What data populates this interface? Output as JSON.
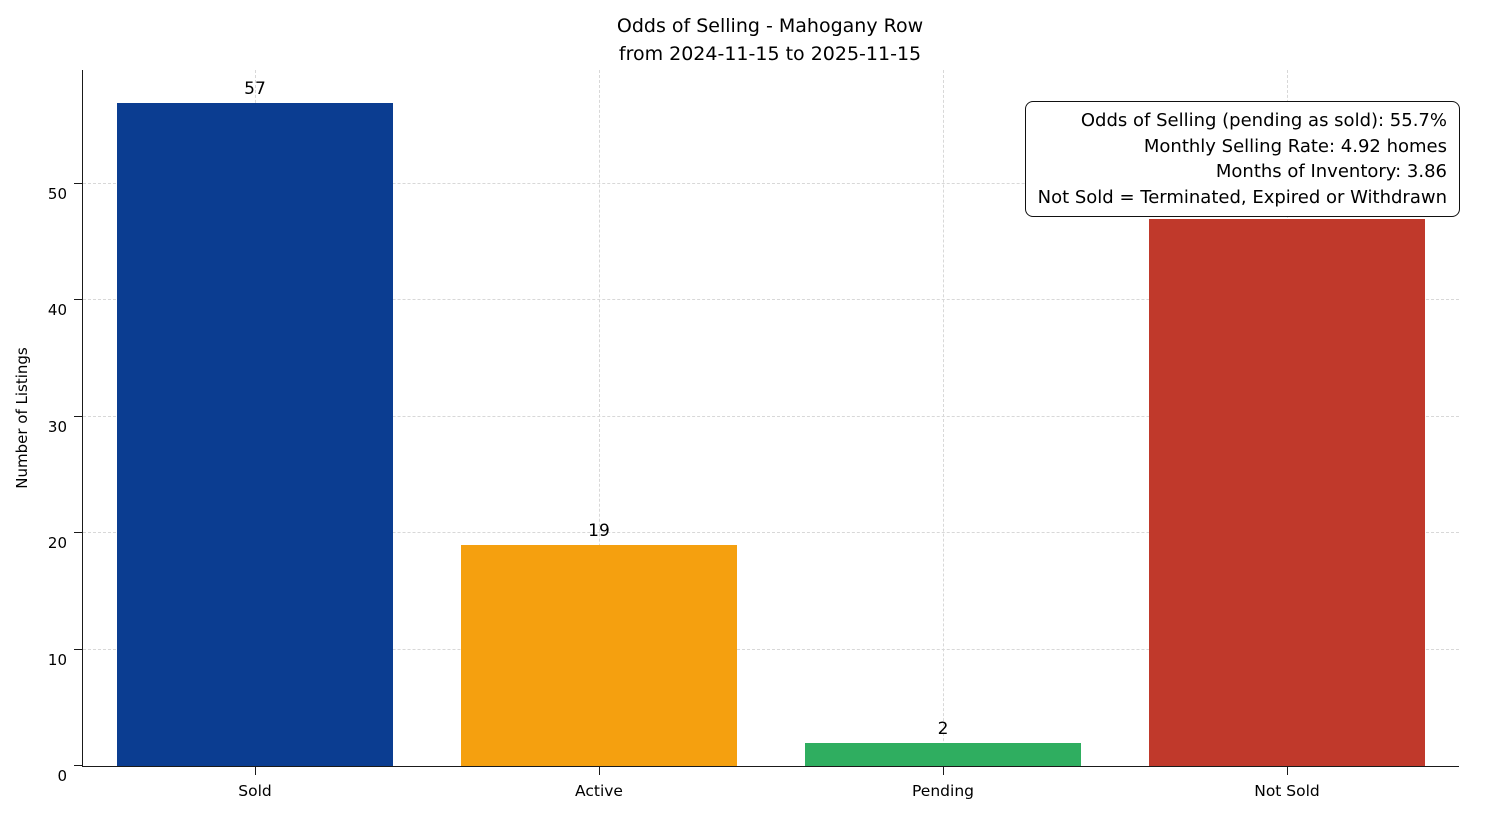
{
  "chart_data": {
    "type": "bar",
    "title": "Odds of Selling - Mahogany Row",
    "subtitle": "from 2024-11-15 to 2025-11-15",
    "ylabel": "Number of Listings",
    "xlabel": "",
    "categories": [
      "Sold",
      "Active",
      "Pending",
      "Not Sold"
    ],
    "values": [
      57,
      19,
      2,
      47
    ],
    "value_label_visible": [
      true,
      true,
      true,
      false
    ],
    "bar_colors": [
      "#0b3d91",
      "#f5a00f",
      "#2fae60",
      "#c0392b"
    ],
    "ylim": [
      0,
      59.8
    ],
    "yticks": [
      0,
      10,
      20,
      30,
      40,
      50
    ],
    "grid": true,
    "legend_position": "none",
    "annotation_lines": [
      "Odds of Selling (pending as sold): 55.7%",
      "Monthly Selling Rate: 4.92 homes",
      "Months of Inventory: 3.86",
      "Not Sold = Terminated, Expired or Withdrawn"
    ]
  }
}
